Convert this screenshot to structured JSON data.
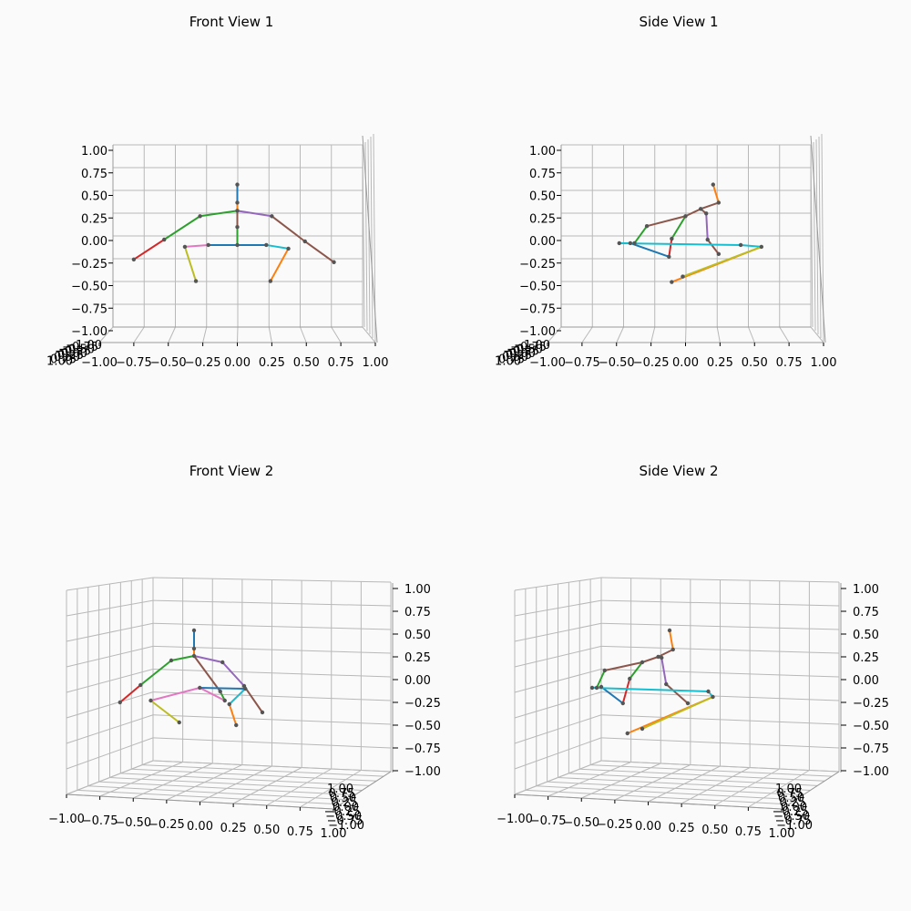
{
  "colors": {
    "background": "#fafafa",
    "palette": [
      "#1f77b4",
      "#ff7f0e",
      "#2ca02c",
      "#d62728",
      "#9467bd",
      "#8c564b",
      "#e377c2",
      "#7f7f7f",
      "#bcbd22",
      "#17becf"
    ],
    "joint": "#555555"
  },
  "chart_data": [
    {
      "type": "scatter3d",
      "title": "Front View 1",
      "xlim": [
        -1,
        1
      ],
      "ylim": [
        -1,
        1
      ],
      "zlim": [
        -1,
        1
      ],
      "x_ticks": [
        "−1.00",
        "−0.75",
        "−0.50",
        "−0.25",
        "0.00",
        "0.25",
        "0.50",
        "0.75",
        "1.00"
      ],
      "z_ticks": [
        "1.00",
        "0.75",
        "0.50",
        "0.25",
        "0.00",
        "−0.25",
        "−0.50",
        "−0.75",
        "−1.00"
      ],
      "depth_ticks": [
        "−1.00",
        "−0.75",
        "−0.50",
        "−0.25",
        "0.00",
        "0.25",
        "0.50",
        "0.75",
        "1.00"
      ],
      "joints": [
        [
          0.0,
          0.62
        ],
        [
          0.0,
          0.42
        ],
        [
          0.0,
          0.33
        ],
        [
          -0.27,
          0.27
        ],
        [
          -0.53,
          0.01
        ],
        [
          -0.75,
          -0.21
        ],
        [
          0.25,
          0.27
        ],
        [
          0.49,
          -0.01
        ],
        [
          0.7,
          -0.24
        ],
        [
          0.0,
          0.15
        ],
        [
          0.0,
          -0.05
        ],
        [
          -0.21,
          -0.05
        ],
        [
          -0.38,
          -0.07
        ],
        [
          -0.3,
          -0.45
        ],
        [
          0.21,
          -0.05
        ],
        [
          0.37,
          -0.09
        ],
        [
          0.24,
          -0.45
        ]
      ],
      "bones": [
        [
          0,
          1,
          0
        ],
        [
          1,
          2,
          1
        ],
        [
          2,
          3,
          2
        ],
        [
          3,
          4,
          2
        ],
        [
          4,
          5,
          3
        ],
        [
          2,
          6,
          4
        ],
        [
          6,
          7,
          5
        ],
        [
          7,
          8,
          5
        ],
        [
          2,
          9,
          5
        ],
        [
          9,
          10,
          2
        ],
        [
          10,
          11,
          0
        ],
        [
          11,
          12,
          6
        ],
        [
          12,
          13,
          8
        ],
        [
          10,
          14,
          0
        ],
        [
          14,
          15,
          9
        ],
        [
          15,
          16,
          1
        ]
      ]
    },
    {
      "type": "scatter3d",
      "title": "Side View 1",
      "xlim": [
        -1,
        1
      ],
      "ylim": [
        -1,
        1
      ],
      "zlim": [
        -1,
        1
      ],
      "x_ticks": [
        "−1.00",
        "−0.75",
        "−0.50",
        "−0.25",
        "0.00",
        "0.25",
        "0.50",
        "0.75",
        "1.00"
      ],
      "z_ticks": [
        "1.00",
        "0.75",
        "0.50",
        "0.25",
        "0.00",
        "−0.25",
        "−0.50",
        "−0.75",
        "−1.00"
      ],
      "depth_ticks": [
        "−1.00",
        "−0.75",
        "−0.50",
        "−0.25",
        "0.00",
        "0.25",
        "0.50",
        "0.75",
        "1.00"
      ],
      "joints": [
        [
          0.2,
          0.62
        ],
        [
          0.24,
          0.42
        ],
        [
          0.11,
          0.35
        ],
        [
          0.0,
          0.27
        ],
        [
          -0.28,
          0.16
        ],
        [
          -0.37,
          -0.03
        ],
        [
          0.15,
          0.3
        ],
        [
          0.16,
          0.01
        ],
        [
          0.24,
          -0.15
        ],
        [
          -0.1,
          0.02
        ],
        [
          -0.12,
          -0.18
        ],
        [
          -0.4,
          -0.03
        ],
        [
          -0.48,
          -0.03
        ],
        [
          -0.1,
          -0.46
        ],
        [
          0.4,
          -0.05
        ],
        [
          0.55,
          -0.07
        ],
        [
          -0.02,
          -0.4
        ]
      ],
      "bones": [
        [
          0,
          1,
          1
        ],
        [
          1,
          2,
          5
        ],
        [
          2,
          3,
          5
        ],
        [
          3,
          4,
          5
        ],
        [
          4,
          5,
          2
        ],
        [
          2,
          6,
          5
        ],
        [
          6,
          7,
          4
        ],
        [
          7,
          8,
          5
        ],
        [
          3,
          9,
          2
        ],
        [
          9,
          10,
          3
        ],
        [
          10,
          11,
          0
        ],
        [
          11,
          12,
          9
        ],
        [
          12,
          14,
          9
        ],
        [
          14,
          15,
          9
        ],
        [
          15,
          13,
          1
        ],
        [
          15,
          16,
          8
        ]
      ]
    },
    {
      "type": "scatter3d",
      "title": "Front View 2",
      "xlim": [
        -1,
        1
      ],
      "ylim": [
        -1,
        1
      ],
      "zlim": [
        -1,
        1
      ],
      "x_ticks": [
        "−1.00",
        "−0.75",
        "−0.50",
        "−0.25",
        "0.00",
        "0.25",
        "0.50",
        "0.75",
        "1.00"
      ],
      "z_ticks": [
        "1.00",
        "0.75",
        "0.50",
        "0.25",
        "0.00",
        "−0.25",
        "−0.50",
        "−0.75",
        "−1.00"
      ],
      "depth_ticks": [
        "−1.00",
        "−0.75",
        "−0.50",
        "−0.25",
        "0.00",
        "0.25",
        "0.50",
        "0.75",
        "1.00"
      ],
      "joints": [
        [
          0.0,
          0.55
        ],
        [
          0.0,
          0.35
        ],
        [
          0.0,
          0.27
        ],
        [
          -0.2,
          0.22
        ],
        [
          -0.47,
          -0.05
        ],
        [
          -0.65,
          -0.24
        ],
        [
          0.25,
          0.2
        ],
        [
          0.44,
          -0.06
        ],
        [
          0.6,
          -0.35
        ],
        [
          0.23,
          -0.12
        ],
        [
          0.27,
          -0.22
        ],
        [
          0.05,
          -0.08
        ],
        [
          -0.38,
          -0.22
        ],
        [
          -0.13,
          -0.46
        ],
        [
          0.45,
          -0.09
        ],
        [
          0.31,
          -0.26
        ],
        [
          0.37,
          -0.49
        ]
      ],
      "bones": [
        [
          0,
          1,
          0
        ],
        [
          1,
          2,
          1
        ],
        [
          2,
          3,
          2
        ],
        [
          3,
          4,
          2
        ],
        [
          4,
          5,
          3
        ],
        [
          2,
          6,
          4
        ],
        [
          6,
          7,
          4
        ],
        [
          7,
          8,
          5
        ],
        [
          2,
          9,
          5
        ],
        [
          9,
          10,
          2
        ],
        [
          10,
          11,
          6
        ],
        [
          11,
          12,
          6
        ],
        [
          12,
          13,
          8
        ],
        [
          11,
          14,
          0
        ],
        [
          14,
          15,
          9
        ],
        [
          15,
          16,
          1
        ]
      ]
    },
    {
      "type": "scatter3d",
      "title": "Side View 2",
      "xlim": [
        -1,
        1
      ],
      "ylim": [
        -1,
        1
      ],
      "zlim": [
        -1,
        1
      ],
      "x_ticks": [
        "−1.00",
        "−0.75",
        "−0.50",
        "−0.25",
        "0.00",
        "0.25",
        "0.50",
        "0.75",
        "1.00"
      ],
      "z_ticks": [
        "1.00",
        "0.75",
        "0.50",
        "0.25",
        "0.00",
        "−0.25",
        "−0.50",
        "−0.75",
        "−1.00"
      ],
      "depth_ticks": [
        "−1.00",
        "−0.75",
        "−0.50",
        "−0.25",
        "0.00",
        "0.25",
        "0.50",
        "0.75",
        "1.00"
      ],
      "joints": [
        [
          0.24,
          0.55
        ],
        [
          0.27,
          0.34
        ],
        [
          0.14,
          0.26
        ],
        [
          0.0,
          0.2
        ],
        [
          -0.33,
          0.11
        ],
        [
          -0.4,
          -0.08
        ],
        [
          0.17,
          0.25
        ],
        [
          0.21,
          -0.04
        ],
        [
          0.4,
          -0.25
        ],
        [
          -0.11,
          0.02
        ],
        [
          -0.17,
          -0.25
        ],
        [
          -0.36,
          -0.07
        ],
        [
          -0.44,
          -0.08
        ],
        [
          -0.13,
          -0.58
        ],
        [
          0.58,
          -0.12
        ],
        [
          0.62,
          -0.18
        ],
        [
          0.0,
          -0.53
        ]
      ],
      "bones": [
        [
          0,
          1,
          1
        ],
        [
          1,
          2,
          5
        ],
        [
          2,
          3,
          5
        ],
        [
          3,
          4,
          5
        ],
        [
          4,
          5,
          2
        ],
        [
          2,
          6,
          5
        ],
        [
          6,
          7,
          4
        ],
        [
          7,
          8,
          5
        ],
        [
          3,
          9,
          2
        ],
        [
          9,
          10,
          3
        ],
        [
          10,
          11,
          0
        ],
        [
          11,
          12,
          9
        ],
        [
          12,
          14,
          9
        ],
        [
          14,
          15,
          9
        ],
        [
          15,
          13,
          1
        ],
        [
          15,
          16,
          8
        ]
      ]
    }
  ]
}
